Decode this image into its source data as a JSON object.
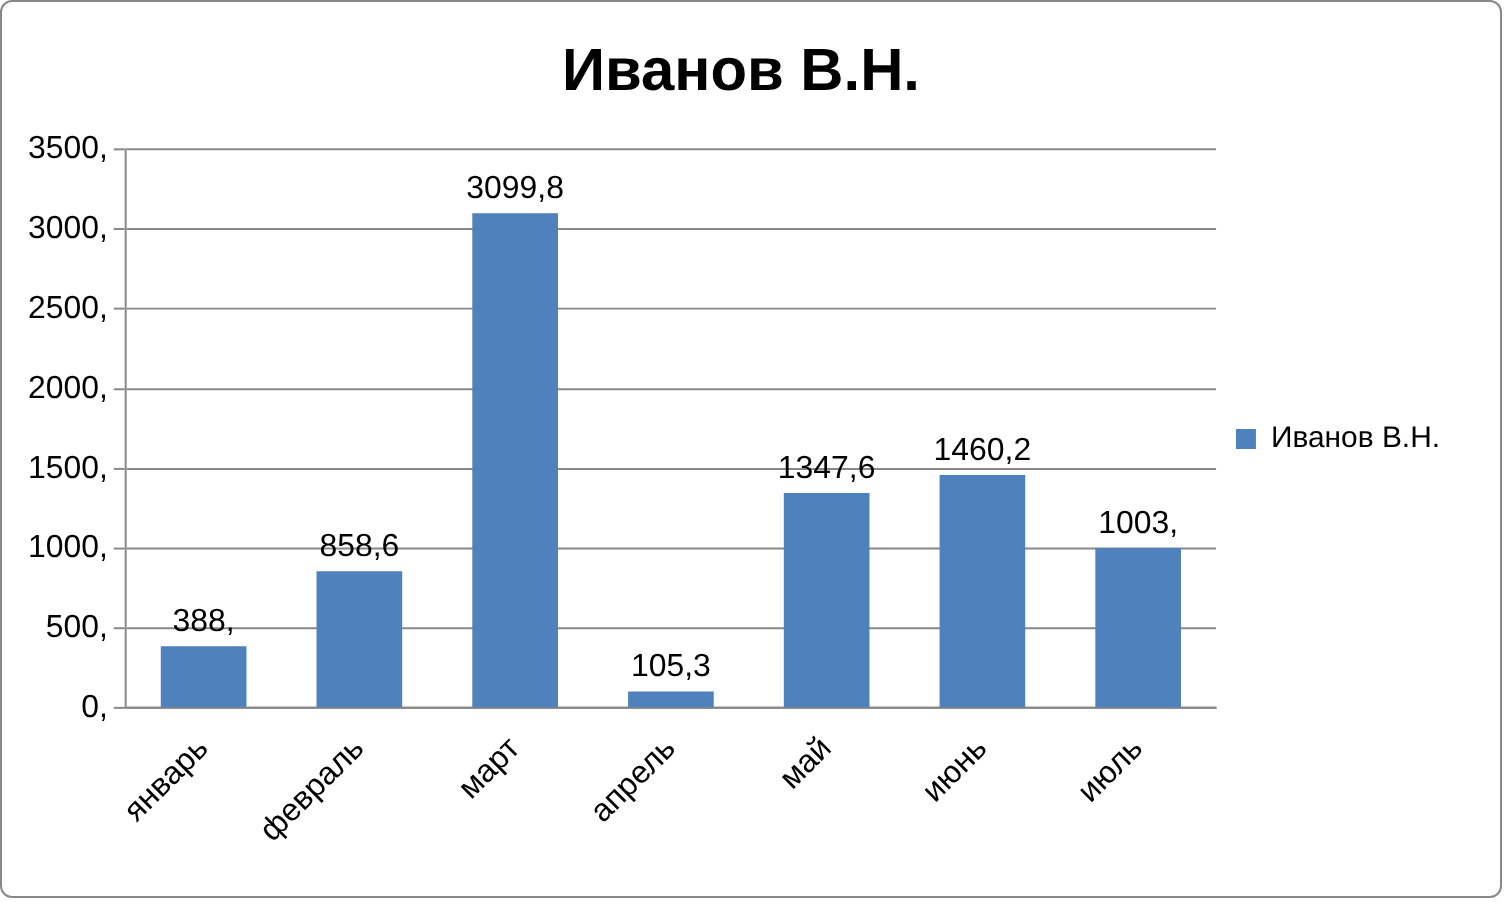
{
  "chart_data": {
    "type": "bar",
    "title": "Иванов В.Н.",
    "categories": [
      "январь",
      "февраль",
      "март",
      "апрель",
      "май",
      "июнь",
      "июль"
    ],
    "series": [
      {
        "name": "Иванов В.Н.",
        "color": "#4f81bd",
        "values": [
          388,
          858.6,
          3099.8,
          105.3,
          1347.6,
          1460.2,
          1003
        ],
        "value_labels": [
          "388,",
          "858,6",
          "3099,8",
          "105,3",
          "1347,6",
          "1460,2",
          "1003,"
        ]
      }
    ],
    "ylim": [
      0,
      3500
    ],
    "yticks": [
      {
        "value": 0,
        "label": "0,"
      },
      {
        "value": 500,
        "label": "500,"
      },
      {
        "value": 1000,
        "label": "1000,"
      },
      {
        "value": 1500,
        "label": "1500,"
      },
      {
        "value": 2000,
        "label": "2000,"
      },
      {
        "value": 2500,
        "label": "2500,"
      },
      {
        "value": 3000,
        "label": "3000,"
      },
      {
        "value": 3500,
        "label": "3500,"
      }
    ],
    "grid": "y",
    "legend": "right"
  }
}
